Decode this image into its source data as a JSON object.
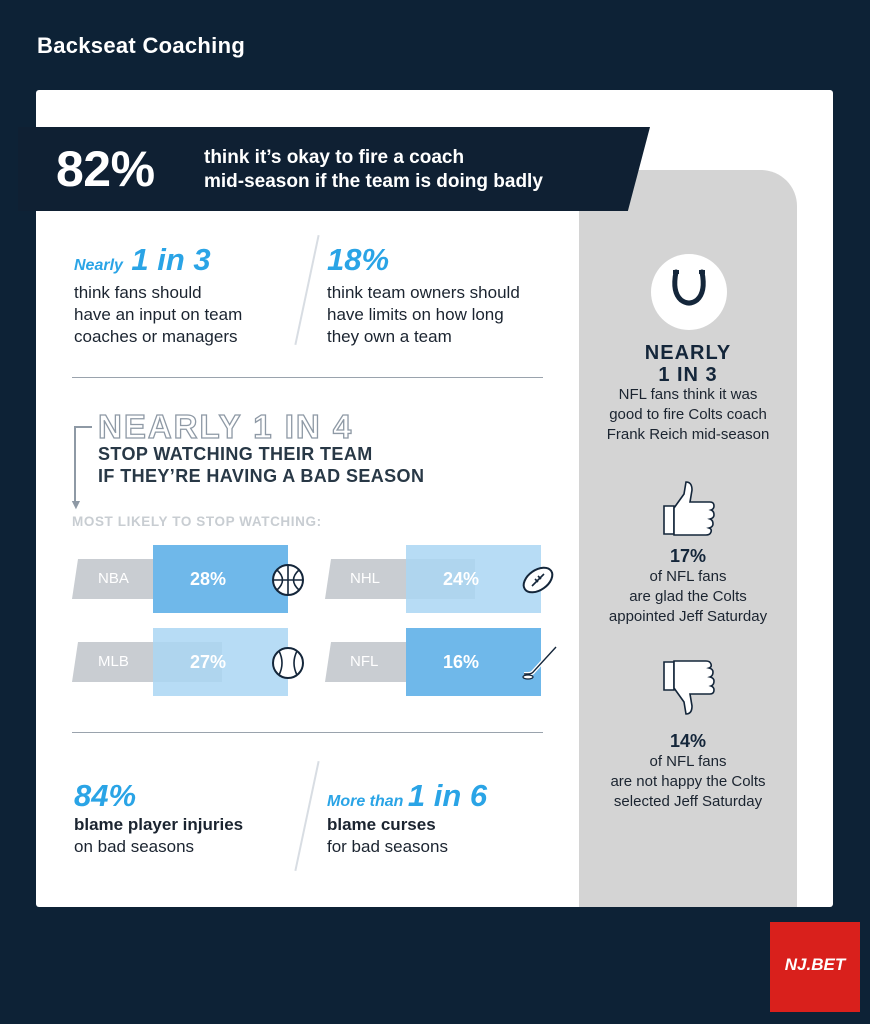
{
  "title": "Backseat Coaching",
  "banner": {
    "pct": "82%",
    "line1": "think it’s okay to fire a coach",
    "line2": "mid-season if the team is doing badly"
  },
  "stat_fans_input": {
    "prefix": "Nearly",
    "figure": "1 in 3",
    "line1": "think fans should",
    "line2": "have an input on team",
    "line3": "coaches or managers"
  },
  "stat_owners": {
    "figure": "18%",
    "line1": "think team owners should",
    "line2": "have limits on how long",
    "line3": "they own a team"
  },
  "stop_watching": {
    "headline": "NEARLY 1 IN 4",
    "line1": "STOP WATCHING THEIR TEAM",
    "line2": "IF THEY’RE HAVING A BAD SEASON",
    "label": "MOST LIKELY TO STOP WATCHING:"
  },
  "sports": [
    {
      "name": "NBA",
      "value": "28%",
      "icon": "basketball-icon"
    },
    {
      "name": "NHL",
      "value": "24%",
      "icon": "football-icon"
    },
    {
      "name": "MLB",
      "value": "27%",
      "icon": "baseball-icon"
    },
    {
      "name": "NFL",
      "value": "16%",
      "icon": "hockey-stick-icon"
    }
  ],
  "stat_injuries": {
    "figure": "84%",
    "line1": "blame player injuries",
    "line2": "on bad seasons"
  },
  "stat_curses": {
    "prefix": "More than",
    "figure": "1 in 6",
    "line1": "blame curses",
    "line2": "for bad seasons"
  },
  "sidebar": {
    "icon": "horseshoe-icon",
    "title1": "NEARLY",
    "title2": "1 IN 3",
    "body1": "NFL fans think it was",
    "body2": "good to fire Colts coach",
    "body3": "Frank Reich mid-season",
    "glad": {
      "icon": "thumbs-up-icon",
      "pct": "17%",
      "line1": "of NFL fans",
      "line2": "are glad the Colts",
      "line3": "appointed Jeff Saturday"
    },
    "unhappy": {
      "icon": "thumbs-down-icon",
      "pct": "14%",
      "line1": "of NFL fans",
      "line2": "are not happy the Colts",
      "line3": "selected Jeff Saturday"
    }
  },
  "brand": "NJ.BET",
  "colors": {
    "navy": "#0d2236",
    "accent_blue": "#2aa4e6",
    "brand_red": "#d9201c"
  }
}
